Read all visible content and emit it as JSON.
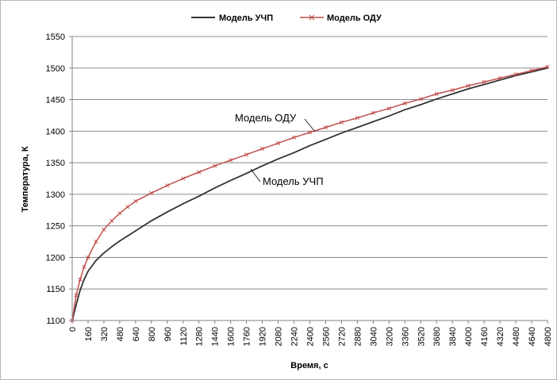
{
  "chart_data": {
    "type": "line",
    "title": "",
    "xlabel": "Время, с",
    "ylabel": "Температура, К",
    "xlim": [
      0,
      4800
    ],
    "ylim": [
      1100,
      1550
    ],
    "grid": true,
    "legend_position": "top-center",
    "x_ticks": [
      0,
      160,
      320,
      480,
      640,
      800,
      960,
      1120,
      1280,
      1440,
      1600,
      1760,
      1920,
      2080,
      2240,
      2400,
      2560,
      2720,
      2880,
      3040,
      3200,
      3360,
      3520,
      3680,
      3840,
      4000,
      4160,
      4320,
      4480,
      4640,
      4800
    ],
    "y_ticks": [
      1100,
      1150,
      1200,
      1250,
      1300,
      1350,
      1400,
      1450,
      1500,
      1550
    ],
    "series": [
      {
        "name": "Модель УЧП",
        "color": "#333333",
        "marker": "none",
        "x": [
          0,
          40,
          80,
          120,
          160,
          240,
          320,
          400,
          480,
          560,
          640,
          800,
          960,
          1120,
          1280,
          1440,
          1600,
          1760,
          1920,
          2080,
          2240,
          2400,
          2560,
          2720,
          2880,
          3040,
          3200,
          3360,
          3520,
          3680,
          3840,
          4000,
          4160,
          4320,
          4480,
          4640,
          4800
        ],
        "y": [
          1100,
          1125,
          1148,
          1165,
          1178,
          1195,
          1207,
          1217,
          1226,
          1234,
          1242,
          1258,
          1272,
          1285,
          1297,
          1310,
          1322,
          1333,
          1345,
          1356,
          1366,
          1377,
          1387,
          1397,
          1406,
          1415,
          1424,
          1434,
          1442,
          1451,
          1459,
          1467,
          1474,
          1481,
          1488,
          1494,
          1500
        ]
      },
      {
        "name": "Модель ОДУ",
        "color": "#c0504d",
        "marker": "cross",
        "x": [
          0,
          40,
          80,
          120,
          160,
          240,
          320,
          400,
          480,
          560,
          640,
          800,
          960,
          1120,
          1280,
          1440,
          1600,
          1760,
          1920,
          2080,
          2240,
          2400,
          2560,
          2720,
          2880,
          3040,
          3200,
          3360,
          3520,
          3680,
          3840,
          4000,
          4160,
          4320,
          4480,
          4640,
          4800
        ],
        "y": [
          1100,
          1140,
          1165,
          1185,
          1200,
          1225,
          1244,
          1258,
          1270,
          1280,
          1289,
          1302,
          1314,
          1325,
          1335,
          1345,
          1354,
          1363,
          1372,
          1381,
          1390,
          1398,
          1406,
          1414,
          1421,
          1429,
          1436,
          1444,
          1451,
          1459,
          1465,
          1472,
          1478,
          1484,
          1490,
          1496,
          1502
        ]
      }
    ],
    "annotations": [
      {
        "text": "Модель ОДУ",
        "target_series": 1
      },
      {
        "text": "Модель УЧП",
        "target_series": 0
      }
    ]
  }
}
